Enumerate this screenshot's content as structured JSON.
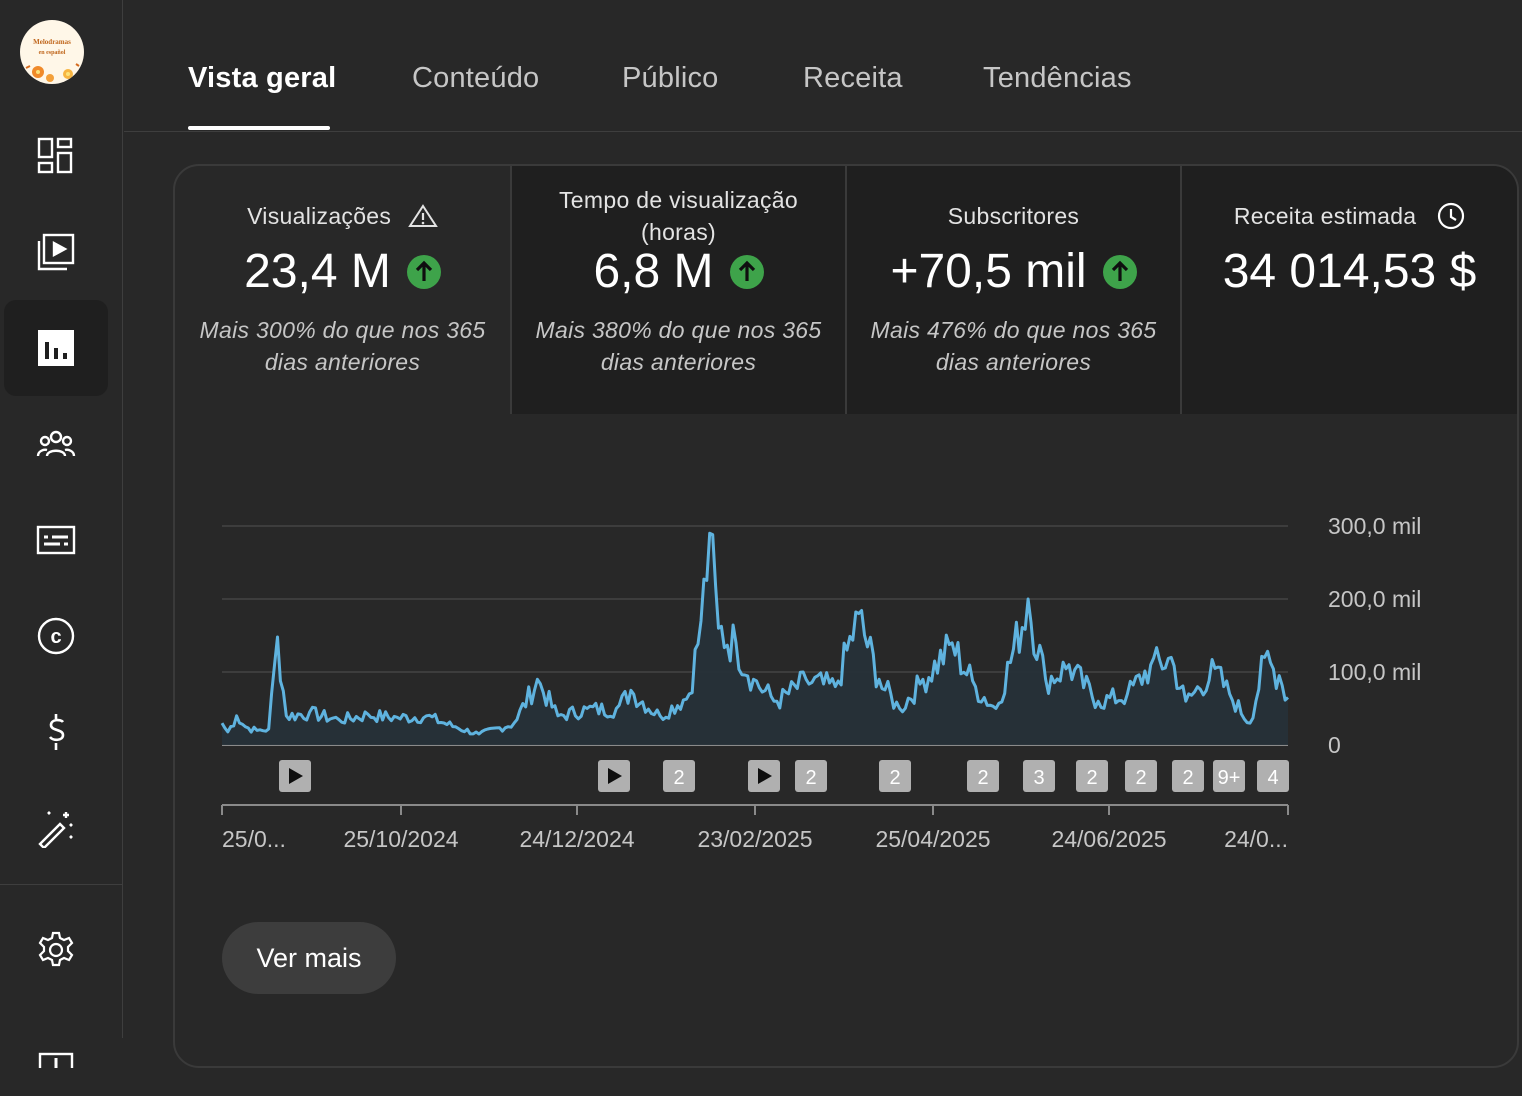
{
  "channel": {
    "avatar_line1": "Melodramas",
    "avatar_line2": "en español"
  },
  "tabs": [
    {
      "label": "Vista geral",
      "active": true
    },
    {
      "label": "Conteúdo",
      "active": false
    },
    {
      "label": "Público",
      "active": false
    },
    {
      "label": "Receita",
      "active": false
    },
    {
      "label": "Tendências",
      "active": false
    }
  ],
  "sidebar": {
    "items": [
      {
        "icon": "dashboard-icon"
      },
      {
        "icon": "content-icon"
      },
      {
        "icon": "analytics-icon",
        "active": true
      },
      {
        "icon": "community-icon"
      },
      {
        "icon": "subtitles-icon"
      },
      {
        "icon": "copyright-icon"
      },
      {
        "icon": "earn-icon"
      },
      {
        "icon": "customization-icon"
      },
      {
        "icon": "settings-icon"
      },
      {
        "icon": "feedback-icon"
      }
    ]
  },
  "metrics": [
    {
      "label": "Visualizações",
      "label_icon": "warning-icon",
      "value": "23,4 M",
      "trend": "up",
      "sub": "Mais 300% do que nos 365 dias anteriores"
    },
    {
      "label": "Tempo de visualização (horas)",
      "value": "6,8 M",
      "trend": "up",
      "sub": "Mais 380% do que nos 365 dias anteriores"
    },
    {
      "label": "Subscritores",
      "value": "+70,5 mil",
      "trend": "up",
      "sub": "Mais 476% do que nos 365 dias anteriores"
    },
    {
      "label": "Receita estimada",
      "label_icon": "clock-icon",
      "value": "34 014,53 $",
      "sub": ""
    }
  ],
  "colors": {
    "line": "#5fb3df",
    "fill": "#263038",
    "up": "#3ea34a"
  },
  "chart_data": {
    "type": "area",
    "ylabel_ticks": [
      "300,0 mil",
      "200,0 mil",
      "100,0 mil",
      "0"
    ],
    "ylim": [
      0,
      300000
    ],
    "x_tick_labels": [
      "25/0...",
      "25/10/2024",
      "24/12/2024",
      "23/02/2025",
      "25/04/2025",
      "24/06/2025",
      "24/0..."
    ],
    "x_range_days": [
      0,
      365
    ],
    "grid": true,
    "peaks": [
      [
        0,
        30000
      ],
      [
        2,
        18000
      ],
      [
        5,
        40000
      ],
      [
        8,
        25000
      ],
      [
        12,
        20000
      ],
      [
        16,
        22000
      ],
      [
        19,
        148000
      ],
      [
        22,
        40000
      ],
      [
        30,
        45000
      ],
      [
        40,
        35000
      ],
      [
        50,
        42000
      ],
      [
        60,
        38000
      ],
      [
        70,
        40000
      ],
      [
        80,
        25000
      ],
      [
        88,
        15000
      ],
      [
        100,
        30000
      ],
      [
        108,
        90000
      ],
      [
        115,
        40000
      ],
      [
        125,
        50000
      ],
      [
        135,
        50000
      ],
      [
        140,
        75000
      ],
      [
        150,
        40000
      ],
      [
        160,
        70000
      ],
      [
        164,
        170000
      ],
      [
        167,
        290000
      ],
      [
        170,
        160000
      ],
      [
        176,
        140000
      ],
      [
        182,
        90000
      ],
      [
        190,
        60000
      ],
      [
        200,
        90000
      ],
      [
        210,
        80000
      ],
      [
        218,
        180000
      ],
      [
        225,
        90000
      ],
      [
        232,
        50000
      ],
      [
        240,
        90000
      ],
      [
        250,
        140000
      ],
      [
        258,
        80000
      ],
      [
        265,
        50000
      ],
      [
        276,
        200000
      ],
      [
        282,
        90000
      ],
      [
        290,
        110000
      ],
      [
        300,
        60000
      ],
      [
        310,
        70000
      ],
      [
        318,
        110000
      ],
      [
        325,
        120000
      ],
      [
        330,
        60000
      ],
      [
        340,
        105000
      ],
      [
        345,
        70000
      ],
      [
        352,
        30000
      ],
      [
        357,
        120000
      ],
      [
        362,
        95000
      ],
      [
        365,
        65000
      ]
    ],
    "markers": [
      {
        "type": "video",
        "label": ""
      },
      {
        "type": "video",
        "label": ""
      },
      {
        "type": "count",
        "label": "2"
      },
      {
        "type": "video",
        "label": ""
      },
      {
        "type": "count",
        "label": "2"
      },
      {
        "type": "count",
        "label": "2"
      },
      {
        "type": "count",
        "label": "2"
      },
      {
        "type": "count",
        "label": "3"
      },
      {
        "type": "count",
        "label": "2"
      },
      {
        "type": "count",
        "label": "2"
      },
      {
        "type": "count",
        "label": "2"
      },
      {
        "type": "count",
        "label": "9+"
      },
      {
        "type": "count",
        "label": "4"
      }
    ]
  },
  "actions": {
    "more_label": "Ver mais"
  }
}
